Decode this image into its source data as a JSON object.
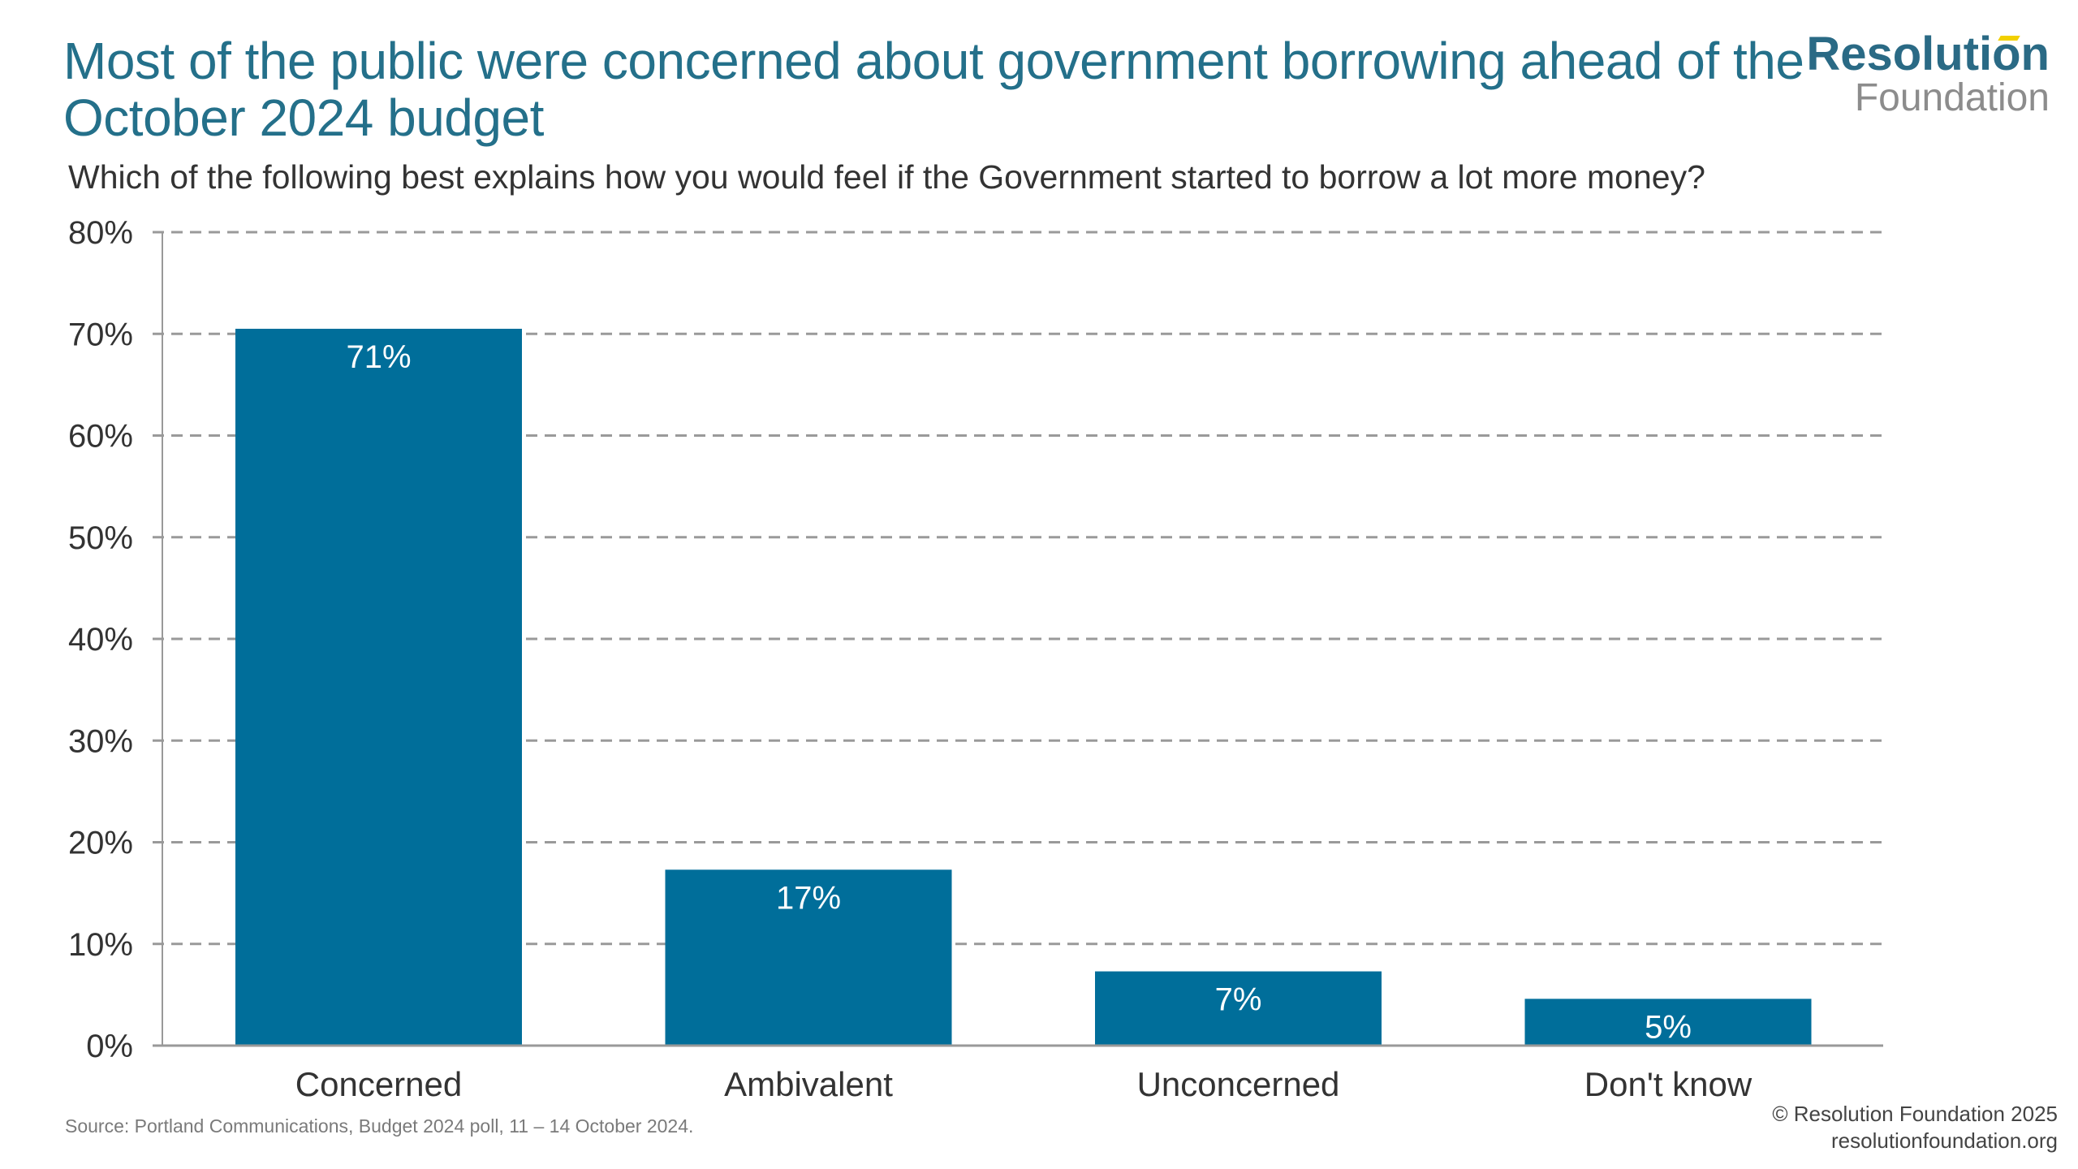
{
  "header": {
    "title": "Most of the public were concerned about government borrowing ahead of the October 2024 budget",
    "logo_line1": "Resolution",
    "logo_line2": "Foundation"
  },
  "chart_data": {
    "type": "bar",
    "title": "Most of the public were concerned about government borrowing ahead of the October 2024 budget",
    "subtitle": "Which of the following best explains how you would feel if the Government started to borrow a lot more money?",
    "categories": [
      "Concerned",
      "Ambivalent",
      "Unconcerned",
      "Don't know"
    ],
    "values": [
      70.5,
      17.3,
      7.3,
      4.6
    ],
    "data_labels": [
      "71%",
      "17%",
      "7%",
      "5%"
    ],
    "ylim": [
      0,
      80
    ],
    "yticks": [
      0,
      10,
      20,
      30,
      40,
      50,
      60,
      70,
      80
    ],
    "ytick_labels": [
      "0%",
      "10%",
      "20%",
      "30%",
      "40%",
      "50%",
      "60%",
      "70%",
      "80%"
    ],
    "grid": true,
    "bar_color": "#006e9a",
    "xlabel": "",
    "ylabel": ""
  },
  "footer": {
    "source": "Source: Portland Communications, Budget 2024 poll, 11 – 14 October 2024.",
    "copyright": "© Resolution Foundation 2025",
    "url": "resolutionfoundation.org"
  }
}
